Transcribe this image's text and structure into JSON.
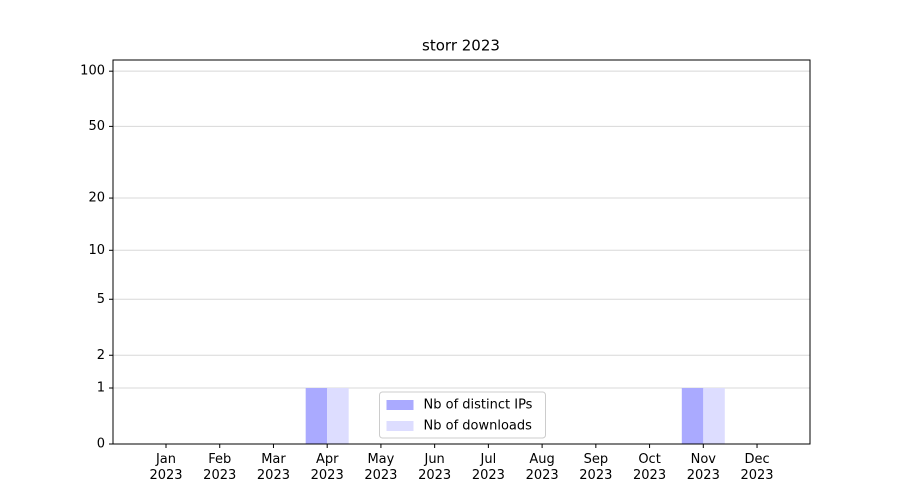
{
  "chart_data": {
    "type": "bar",
    "title": "storr 2023",
    "categories": [
      "Jan 2023",
      "Feb 2023",
      "Mar 2023",
      "Apr 2023",
      "May 2023",
      "Jun 2023",
      "Jul 2023",
      "Aug 2023",
      "Sep 2023",
      "Oct 2023",
      "Nov 2023",
      "Dec 2023"
    ],
    "series": [
      {
        "name": "Nb of distinct IPs",
        "color": "#aaaaff",
        "values": [
          0,
          0,
          0,
          1,
          0,
          0,
          0,
          0,
          0,
          0,
          1,
          0
        ]
      },
      {
        "name": "Nb of downloads",
        "color": "#ddddff",
        "values": [
          0,
          0,
          0,
          1,
          0,
          0,
          0,
          0,
          0,
          0,
          1,
          0
        ]
      }
    ],
    "yscale": "log1p",
    "ylim": [
      0,
      115
    ],
    "yticks": [
      0,
      1,
      2,
      5,
      10,
      20,
      50,
      100
    ],
    "grid": true,
    "legend": "lower center"
  }
}
